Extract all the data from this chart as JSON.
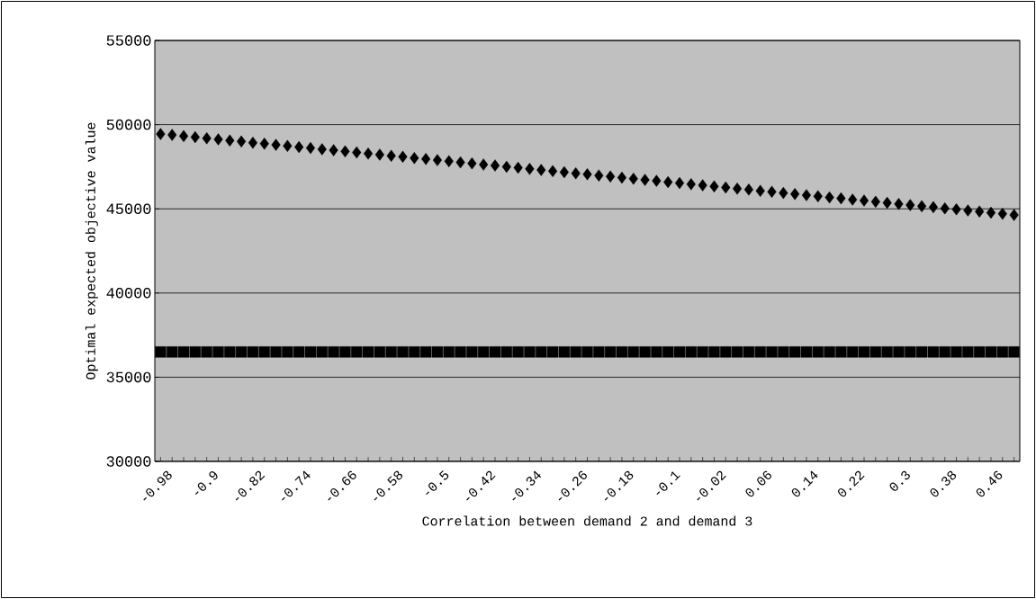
{
  "chart_data": {
    "type": "scatter",
    "xlabel": "Correlation between demand 2 and demand 3",
    "ylabel": "Optimal expected objective value",
    "categories": [
      "-0.98",
      null,
      null,
      null,
      "-0.9",
      null,
      null,
      null,
      "-0.82",
      null,
      null,
      null,
      "-0.74",
      null,
      null,
      null,
      "-0.66",
      null,
      null,
      null,
      "-0.58",
      null,
      null,
      null,
      "-0.5",
      null,
      null,
      null,
      "-0.42",
      null,
      null,
      null,
      "-0.34",
      null,
      null,
      null,
      "-0.26",
      null,
      null,
      null,
      "-0.18",
      null,
      null,
      null,
      "-0.1",
      null,
      null,
      null,
      "-0.02",
      null,
      null,
      null,
      "0.06",
      null,
      null,
      null,
      "0.14",
      null,
      null,
      null,
      "0.22",
      null,
      null,
      null,
      "0.3",
      null,
      null,
      null,
      "0.38",
      null,
      null,
      null,
      "0.46",
      null,
      null
    ],
    "series": [
      {
        "color": "#000000",
        "marker": "diamond",
        "values": [
          49450,
          49390,
          49320,
          49260,
          49190,
          49130,
          49060,
          49000,
          48930,
          48870,
          48800,
          48740,
          48670,
          48610,
          48540,
          48480,
          48410,
          48350,
          48280,
          48220,
          48150,
          48090,
          48020,
          47960,
          47890,
          47830,
          47760,
          47700,
          47630,
          47570,
          47500,
          47440,
          47370,
          47310,
          47240,
          47180,
          47110,
          47050,
          46980,
          46920,
          46850,
          46790,
          46720,
          46660,
          46590,
          46530,
          46460,
          46400,
          46330,
          46270,
          46200,
          46140,
          46070,
          46010,
          45940,
          45880,
          45810,
          45750,
          45680,
          45620,
          45550,
          45490,
          45420,
          45360,
          45290,
          45230,
          45160,
          45100,
          45030,
          44970,
          44900,
          44840,
          44770,
          44710,
          44640
        ]
      },
      {
        "color": "#000000",
        "marker": "square",
        "values": [
          36500,
          36500,
          36500,
          36500,
          36500,
          36500,
          36500,
          36500,
          36500,
          36500,
          36500,
          36500,
          36500,
          36500,
          36500,
          36500,
          36500,
          36500,
          36500,
          36500,
          36500,
          36500,
          36500,
          36500,
          36500,
          36500,
          36500,
          36500,
          36500,
          36500,
          36500,
          36500,
          36500,
          36500,
          36500,
          36500,
          36500,
          36500,
          36500,
          36500,
          36500,
          36500,
          36500,
          36500,
          36500,
          36500,
          36500,
          36500,
          36500,
          36500,
          36500,
          36500,
          36500,
          36500,
          36500,
          36500,
          36500,
          36500,
          36500,
          36500,
          36500,
          36500,
          36500,
          36500,
          36500,
          36500,
          36500,
          36500,
          36500,
          36500,
          36500,
          36500,
          36500,
          36500,
          36500
        ]
      }
    ],
    "ylim": [
      30000,
      55000
    ],
    "yticks": [
      30000,
      35000,
      40000,
      45000,
      50000,
      55000
    ],
    "grid": "y"
  }
}
